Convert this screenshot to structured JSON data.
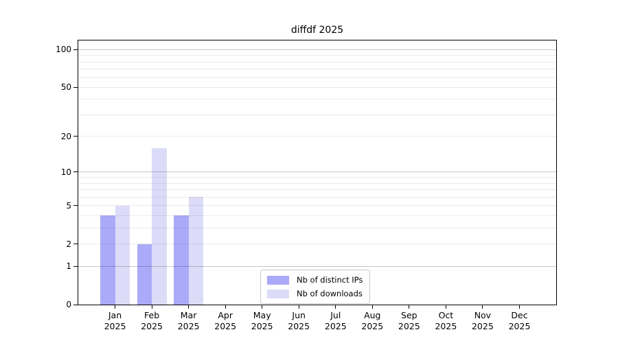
{
  "figure": {
    "title": "diffdf 2025"
  },
  "chart_data": {
    "type": "bar",
    "title": "diffdf 2025",
    "categories": [
      "Jan",
      "Feb",
      "Mar",
      "Apr",
      "May",
      "Jun",
      "Jul",
      "Aug",
      "Sep",
      "Oct",
      "Nov",
      "Dec"
    ],
    "year_label": "2025",
    "series": [
      {
        "name": "Nb of distinct IPs",
        "color": "#aaaaf8",
        "values": [
          4,
          2,
          4,
          0,
          0,
          0,
          0,
          0,
          0,
          0,
          0,
          0
        ]
      },
      {
        "name": "Nb of downloads",
        "color": "#dcdcf9",
        "values": [
          5,
          16,
          6,
          0,
          0,
          0,
          0,
          0,
          0,
          0,
          0,
          0
        ]
      }
    ],
    "xlabel": "",
    "ylabel": "",
    "yscale": "log1p",
    "ylim": [
      0,
      118
    ],
    "yticks": [
      0,
      1,
      2,
      5,
      10,
      20,
      50,
      100
    ],
    "grid": {
      "major_at": [
        1,
        10,
        100
      ],
      "minor_at": [
        2,
        3,
        4,
        5,
        6,
        7,
        8,
        9,
        20,
        30,
        40,
        50,
        60,
        70,
        80,
        90
      ],
      "major_color": "rgba(0,0,0,0.22)",
      "minor_color": "rgba(0,0,0,0.08)"
    },
    "legend": {
      "position": "lower center"
    },
    "axis_color": "#000000",
    "background_color": "#ffffff"
  }
}
